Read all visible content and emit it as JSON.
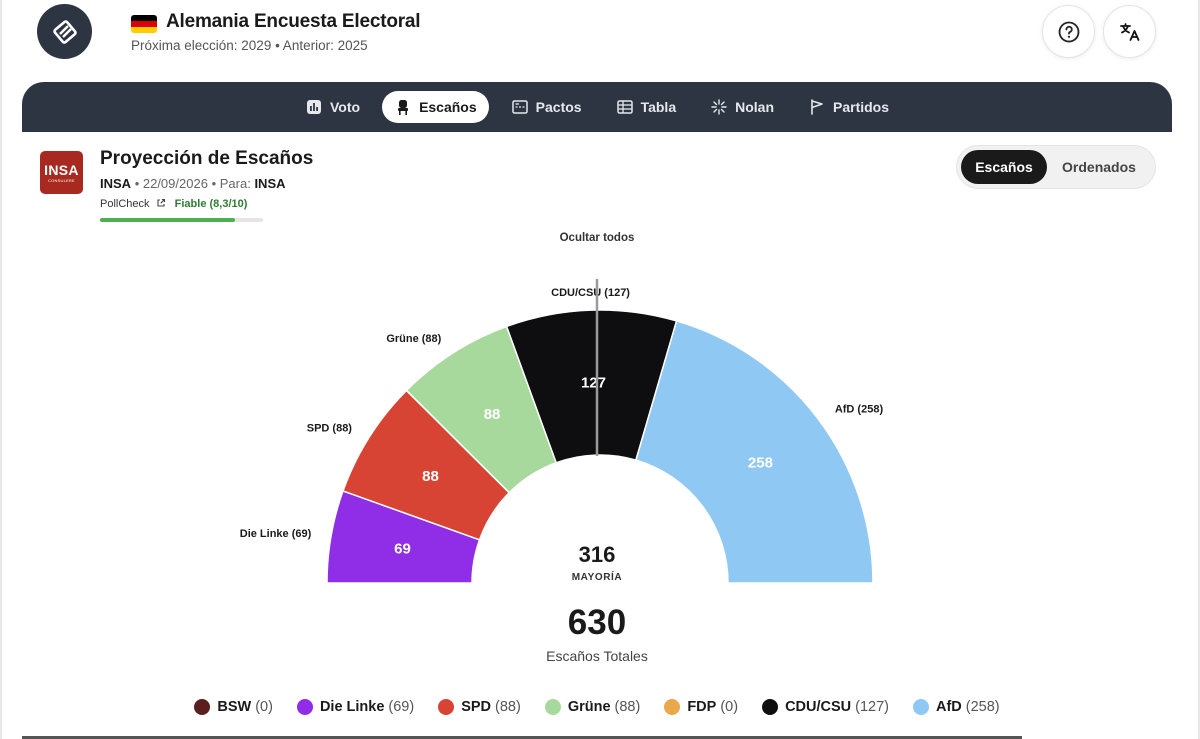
{
  "header": {
    "title": "Alemania Encuesta Electoral",
    "subtitle": "Próxima elección: 2029 • Anterior: 2025",
    "icons": {
      "app_logo": "ballot-logo-icon",
      "flag": "germany-flag-icon",
      "help": "help-icon",
      "translate": "translate-icon"
    }
  },
  "nav": {
    "tabs": [
      {
        "label": "Voto",
        "icon": "bar-chart-icon",
        "active": false
      },
      {
        "label": "Escaños",
        "icon": "seat-icon",
        "active": true
      },
      {
        "label": "Pactos",
        "icon": "pacts-icon",
        "active": false
      },
      {
        "label": "Tabla",
        "icon": "table-icon",
        "active": false
      },
      {
        "label": "Nolan",
        "icon": "nolan-icon",
        "active": false
      },
      {
        "label": "Partidos",
        "icon": "flag-icon",
        "active": false
      }
    ]
  },
  "projection": {
    "title": "Proyección de Escaños",
    "pollster": "INSA",
    "date": "22/09/2026",
    "for_label": "Para:",
    "client": "INSA",
    "logo_text": "INSA",
    "logo_subtext": "CONSULERE",
    "pollcheck_label": "PollCheck",
    "reliability": "Fiable (8,3/10)",
    "reliability_score": 0.83
  },
  "view_toggle": {
    "options": [
      "Escaños",
      "Ordenados"
    ],
    "selected": "Escaños"
  },
  "chart_controls": {
    "hide_all": "Ocultar todos"
  },
  "chart_data": {
    "type": "pie",
    "shape": "half-donut",
    "parties": [
      {
        "name": "BSW",
        "seats": 0,
        "color": "#5a1e1e"
      },
      {
        "name": "Die Linke",
        "seats": 69,
        "color": "#8f2ee6",
        "label": "Die Linke (69)"
      },
      {
        "name": "SPD",
        "seats": 88,
        "color": "#d84434",
        "label": "SPD (88)"
      },
      {
        "name": "Grüne",
        "seats": 88,
        "color": "#a8d99c",
        "label": "Grüne (88)"
      },
      {
        "name": "FDP",
        "seats": 0,
        "color": "#e9a84a"
      },
      {
        "name": "CDU/CSU",
        "seats": 127,
        "color": "#0e0e10",
        "label": "CDU/CSU (127)"
      },
      {
        "name": "AfD",
        "seats": 258,
        "color": "#90c8f4",
        "label": "AfD (258)"
      }
    ],
    "majority": "316",
    "majority_label": "MAYORÍA",
    "total": "630",
    "total_label": "Escaños Totales"
  },
  "legend": [
    {
      "name": "BSW",
      "count": "(0)",
      "color": "#5a1e1e"
    },
    {
      "name": "Die Linke",
      "count": "(69)",
      "color": "#8f2ee6"
    },
    {
      "name": "SPD",
      "count": "(88)",
      "color": "#d84434"
    },
    {
      "name": "Grüne",
      "count": "(88)",
      "color": "#a8d99c"
    },
    {
      "name": "FDP",
      "count": "(0)",
      "color": "#e9a84a"
    },
    {
      "name": "CDU/CSU",
      "count": "(127)",
      "color": "#0e0e10"
    },
    {
      "name": "AfD",
      "count": "(258)",
      "color": "#90c8f4"
    }
  ]
}
